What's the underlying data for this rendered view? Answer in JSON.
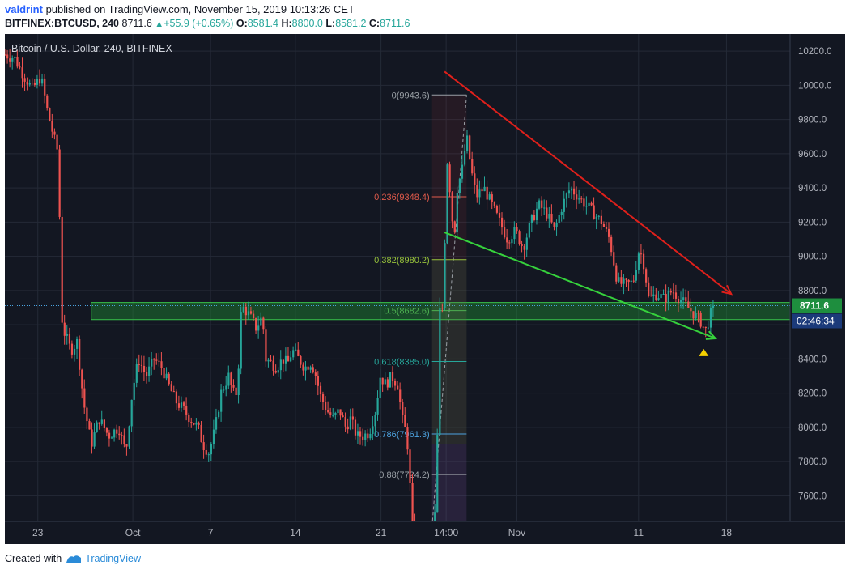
{
  "header": {
    "user": "valdrint",
    "published_text": " published on TradingView.com, November 15, 2019 10:13:26 CET",
    "symbol": "BITFINEX:BTCUSD",
    "interval": ", 240",
    "last": "8711.6",
    "change": "+55.9 (+0.65%)",
    "open_label": "O:",
    "open": "8581.4",
    "high_label": "H:",
    "high": "8800.0",
    "low_label": "L:",
    "low": "8581.2",
    "close_label": "C:",
    "close": "8711.6"
  },
  "footer": {
    "created_with": "Created with",
    "brand": "TradingView"
  },
  "colors": {
    "background": "#131722",
    "up": "#26a69a",
    "down": "#ef5350",
    "resistance": "#e0201b",
    "support": "#36d23c",
    "zone": "#1f8a33",
    "price_label_bg": "#1e8e3e",
    "timer_bg": "#1b3a7a",
    "marker": "#f5d000"
  },
  "chart_data": {
    "type": "candlestick",
    "legend": "Bitcoin / U.S. Dollar, 240, BITFINEX",
    "ylim": [
      7450,
      10300
    ],
    "xlim": [
      0,
      100
    ],
    "y_ticks": [
      "10200.0",
      "10000.0",
      "9800.0",
      "9600.0",
      "9400.0",
      "9200.0",
      "9000.0",
      "8800.0",
      "8600.0",
      "8400.0",
      "8200.0",
      "8000.0",
      "7800.0",
      "7600.0"
    ],
    "y_tick_values": [
      10200,
      10000,
      9800,
      9600,
      9400,
      9200,
      9000,
      8800,
      8600,
      8400,
      8200,
      8000,
      7800,
      7600
    ],
    "x_ticks": [
      {
        "label": "23",
        "x": 4.2
      },
      {
        "label": "Oct",
        "x": 16.3
      },
      {
        "label": "7",
        "x": 26.2
      },
      {
        "label": "14",
        "x": 37.0
      },
      {
        "label": "21",
        "x": 47.9
      },
      {
        "label": "14:00",
        "x": 56.2
      },
      {
        "label": "Nov",
        "x": 65.2
      },
      {
        "label": "11",
        "x": 80.7
      },
      {
        "label": "18",
        "x": 91.9
      }
    ],
    "path": [
      [
        0,
        10180
      ],
      [
        1.2,
        10160
      ],
      [
        2.5,
        10050
      ],
      [
        3.5,
        9980
      ],
      [
        4.6,
        10050
      ],
      [
        5.4,
        9850
      ],
      [
        6.2,
        9700
      ],
      [
        6.8,
        9600
      ],
      [
        7.0,
        9150
      ],
      [
        7.2,
        8650
      ],
      [
        7.6,
        8550
      ],
      [
        8.4,
        8450
      ],
      [
        9.2,
        8500
      ],
      [
        10.0,
        8150
      ],
      [
        11.0,
        7900
      ],
      [
        12.0,
        8050
      ],
      [
        13.2,
        7950
      ],
      [
        14.5,
        8000
      ],
      [
        15.4,
        7850
      ],
      [
        16.2,
        8200
      ],
      [
        17.0,
        8400
      ],
      [
        18.0,
        8300
      ],
      [
        19.0,
        8400
      ],
      [
        20.0,
        8350
      ],
      [
        20.8,
        8250
      ],
      [
        21.8,
        8150
      ],
      [
        22.8,
        8100
      ],
      [
        23.6,
        8050
      ],
      [
        24.6,
        8000
      ],
      [
        25.2,
        7900
      ],
      [
        26.0,
        7850
      ],
      [
        26.8,
        8000
      ],
      [
        27.5,
        8200
      ],
      [
        28.5,
        8300
      ],
      [
        29.0,
        8200
      ],
      [
        29.6,
        8200
      ],
      [
        30.0,
        8650
      ],
      [
        30.4,
        8700
      ],
      [
        31.2,
        8650
      ],
      [
        32.0,
        8580
      ],
      [
        32.8,
        8650
      ],
      [
        33.2,
        8400
      ],
      [
        33.8,
        8380
      ],
      [
        34.6,
        8350
      ],
      [
        35.4,
        8400
      ],
      [
        36.0,
        8370
      ],
      [
        36.6,
        8450
      ],
      [
        37.4,
        8400
      ],
      [
        38.2,
        8350
      ],
      [
        39.0,
        8380
      ],
      [
        39.6,
        8300
      ],
      [
        40.2,
        8180
      ],
      [
        41.0,
        8100
      ],
      [
        41.8,
        8050
      ],
      [
        42.6,
        8100
      ],
      [
        43.4,
        8000
      ],
      [
        44.0,
        8050
      ],
      [
        44.8,
        7950
      ],
      [
        45.6,
        7950
      ],
      [
        46.4,
        7970
      ],
      [
        47.2,
        8100
      ],
      [
        47.8,
        8300
      ],
      [
        48.5,
        8250
      ],
      [
        49.2,
        8300
      ],
      [
        50.0,
        8250
      ],
      [
        50.6,
        8050
      ],
      [
        51.2,
        7950
      ],
      [
        52.0,
        7350
      ],
      [
        53.0,
        7350
      ],
      [
        53.8,
        7350
      ],
      [
        54.6,
        7350
      ],
      [
        55.0,
        7700
      ],
      [
        55.2,
        8400
      ],
      [
        55.4,
        8700
      ],
      [
        55.8,
        8700
      ],
      [
        56.0,
        9050
      ],
      [
        56.2,
        9600
      ],
      [
        56.5,
        9500
      ],
      [
        56.8,
        9300
      ],
      [
        57.2,
        9100
      ],
      [
        57.6,
        9400
      ],
      [
        58.2,
        9500
      ],
      [
        58.8,
        9700
      ],
      [
        59.4,
        9500
      ],
      [
        60.0,
        9350
      ],
      [
        61.0,
        9400
      ],
      [
        62.0,
        9300
      ],
      [
        63.0,
        9200
      ],
      [
        64.0,
        9100
      ],
      [
        65.0,
        9150
      ],
      [
        66.0,
        9050
      ],
      [
        67.0,
        9200
      ],
      [
        68.0,
        9300
      ],
      [
        69.0,
        9250
      ],
      [
        70.0,
        9150
      ],
      [
        71.0,
        9300
      ],
      [
        72.0,
        9400
      ],
      [
        73.0,
        9350
      ],
      [
        74.0,
        9300
      ],
      [
        75.0,
        9250
      ],
      [
        76.0,
        9200
      ],
      [
        77.0,
        9100
      ],
      [
        77.6,
        8950
      ],
      [
        78.0,
        8850
      ],
      [
        79.0,
        8830
      ],
      [
        80.0,
        8850
      ],
      [
        80.8,
        9050
      ],
      [
        81.4,
        8950
      ],
      [
        82.0,
        8750
      ],
      [
        83.0,
        8780
      ],
      [
        84.0,
        8750
      ],
      [
        85.0,
        8800
      ],
      [
        86.0,
        8750
      ],
      [
        87.0,
        8700
      ],
      [
        88.0,
        8650
      ],
      [
        88.6,
        8620
      ],
      [
        89.2,
        8560
      ],
      [
        89.8,
        8650
      ],
      [
        90.2,
        8712
      ]
    ],
    "levels": {
      "zone": [
        8630,
        8730
      ],
      "current_price": 8711.6,
      "current_price_label": "8711.6",
      "timer_label": "02:46:34"
    },
    "fibonacci": {
      "x_start": 54.4,
      "x_end": 58.8,
      "levels": [
        {
          "ratio": "0",
          "price": 9943.6,
          "label": "0(9943.6)",
          "color": "#9aa0a6"
        },
        {
          "ratio": "0.236",
          "price": 9348.4,
          "label": "0.236(9348.4)",
          "color": "#e05a4b"
        },
        {
          "ratio": "0.382",
          "price": 8980.2,
          "label": "0.382(8980.2)",
          "color": "#98c43c"
        },
        {
          "ratio": "0.5",
          "price": 8682.6,
          "label": "0.5(8682.6)",
          "color": "#4caf50"
        },
        {
          "ratio": "0.618",
          "price": 8385.0,
          "label": "0.618(8385.0)",
          "color": "#26a69a"
        },
        {
          "ratio": "0.786",
          "price": 7961.3,
          "label": "0.786(7961.3)",
          "color": "#4da3e0"
        },
        {
          "ratio": "0.88",
          "price": 7724.2,
          "label": "0.88(7724.2)",
          "color": "#9aa0a6"
        }
      ]
    },
    "trendlines": [
      {
        "name": "resistance",
        "from": [
          56.0,
          10080
        ],
        "to": [
          92.5,
          8780
        ],
        "color": "#e0201b"
      },
      {
        "name": "support",
        "from": [
          56.0,
          9140
        ],
        "to": [
          90.5,
          8520
        ],
        "color": "#36d23c"
      }
    ],
    "marker": {
      "x": 89.0,
      "y": 8440
    }
  }
}
